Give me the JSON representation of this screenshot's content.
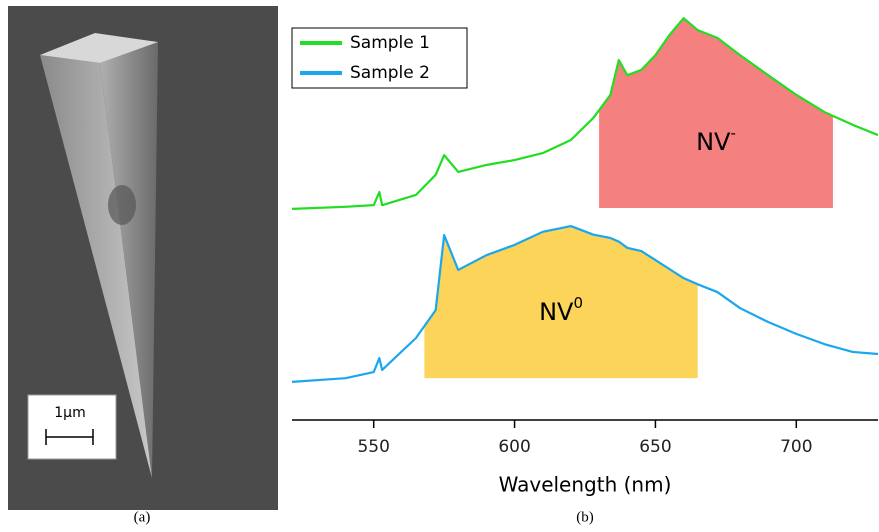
{
  "figure": {
    "caption_a": "(a)",
    "caption_b": "(b)",
    "scale_bar": "1µm"
  },
  "chart_data": {
    "type": "line",
    "xlabel": "Wavelength (nm)",
    "x": [
      521,
      540,
      550,
      552,
      553,
      565,
      572,
      575,
      580,
      590,
      600,
      610,
      620,
      628,
      634,
      637,
      640,
      645,
      650,
      655,
      660,
      665,
      672,
      680,
      690,
      700,
      710,
      720,
      729
    ],
    "series": [
      {
        "name": "Sample 1",
        "color": "#22dd22",
        "values": [
          51.5,
          52,
          52.4,
          55.6,
          52.4,
          54.9,
          59.8,
          64.6,
          60.5,
          62.2,
          63.4,
          65.1,
          68.3,
          73.7,
          79.3,
          87.8,
          84.1,
          85.4,
          89,
          93.9,
          98,
          95.1,
          93.2,
          89,
          84.1,
          79.3,
          75.1,
          72,
          69.5
        ]
      },
      {
        "name": "Sample 2",
        "color": "#1aa7ee",
        "values": [
          9.3,
          10.2,
          11.7,
          15.1,
          12.2,
          20,
          26.8,
          45.1,
          36.6,
          40.2,
          42.7,
          45.9,
          47.3,
          45.2,
          44.4,
          43.5,
          42,
          41.2,
          39,
          36.8,
          34.6,
          33.1,
          31.2,
          27.3,
          23.9,
          21,
          18.5,
          16.6,
          16.1
        ]
      }
    ],
    "regions": [
      {
        "label": "NV",
        "superscript": "-",
        "xlim": [
          630,
          713
        ],
        "base": 51.7,
        "color": "#f4817f"
      },
      {
        "label": "NV",
        "superscript": "0",
        "xlim": [
          568,
          665
        ],
        "base": 10.2,
        "color": "#fcd45a"
      }
    ],
    "xlim": [
      521,
      729
    ],
    "xticks": [
      550,
      600,
      650,
      700
    ],
    "ylim": [
      0,
      100
    ],
    "legend": "upper left"
  }
}
